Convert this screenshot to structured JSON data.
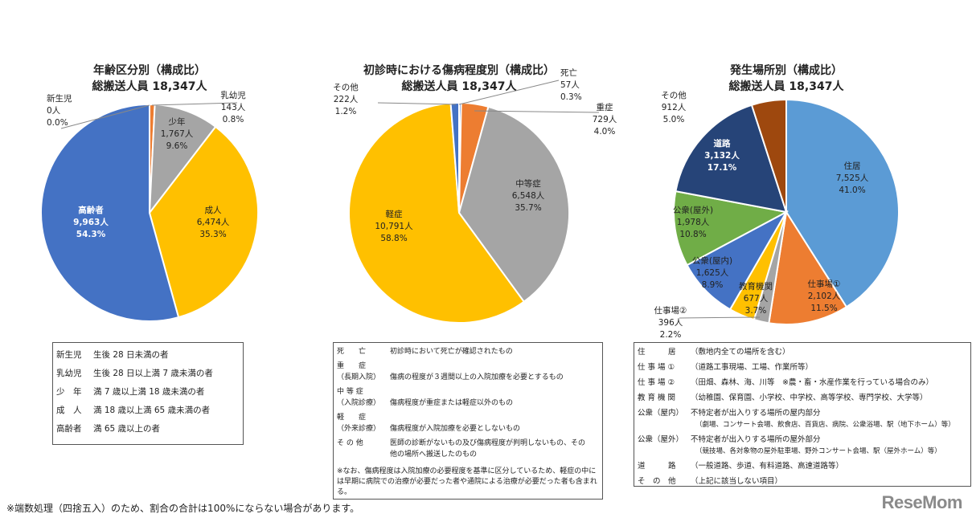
{
  "chart_data": [
    {
      "type": "pie",
      "title": "年齢区分別（構成比）",
      "subtitle": "総搬送人員 18,347人",
      "slices": [
        {
          "name": "新生児",
          "count": "0人",
          "pct": "0.0%",
          "value": 0,
          "color": "#ED7D31"
        },
        {
          "name": "乳幼児",
          "count": "143人",
          "pct": "0.8%",
          "value": 143,
          "color": "#ED7D31"
        },
        {
          "name": "少年",
          "count": "1,767人",
          "pct": "9.6%",
          "value": 1767,
          "color": "#A5A5A5"
        },
        {
          "name": "成人",
          "count": "6,474人",
          "pct": "35.3%",
          "value": 6474,
          "color": "#FFC000"
        },
        {
          "name": "高齢者",
          "count": "9,963人",
          "pct": "54.3%",
          "value": 9963,
          "color": "#4472C4"
        }
      ]
    },
    {
      "type": "pie",
      "title": "初診時における傷病程度別（構成比）",
      "subtitle": "総搬送人員 18,347人",
      "slices": [
        {
          "name": "死亡",
          "count": "57人",
          "pct": "0.3%",
          "value": 57,
          "color": "#4472C4"
        },
        {
          "name": "重症",
          "count": "729人",
          "pct": "4.0%",
          "value": 729,
          "color": "#ED7D31"
        },
        {
          "name": "中等症",
          "count": "6,548人",
          "pct": "35.7%",
          "value": 6548,
          "color": "#A5A5A5"
        },
        {
          "name": "軽症",
          "count": "10,791人",
          "pct": "58.8%",
          "value": 10791,
          "color": "#FFC000"
        },
        {
          "name": "その他",
          "count": "222人",
          "pct": "1.2%",
          "value": 222,
          "color": "#4472C4"
        }
      ]
    },
    {
      "type": "pie",
      "title": "発生場所別（構成比）",
      "subtitle": "総搬送人員 18,347人",
      "slices": [
        {
          "name": "住居",
          "count": "7,525人",
          "pct": "41.0%",
          "value": 7525,
          "color": "#5B9BD5"
        },
        {
          "name": "仕事場①",
          "count": "2,102人",
          "pct": "11.5%",
          "value": 2102,
          "color": "#ED7D31"
        },
        {
          "name": "仕事場②",
          "count": "396人",
          "pct": "2.2%",
          "value": 396,
          "color": "#A5A5A5"
        },
        {
          "name": "教育機関",
          "count": "677人",
          "pct": "3.7%",
          "value": 677,
          "color": "#FFC000"
        },
        {
          "name": "公衆(屋内)",
          "count": "1,625人",
          "pct": "8.9%",
          "value": 1625,
          "color": "#4472C4"
        },
        {
          "name": "公衆(屋外)",
          "count": "1,978人",
          "pct": "10.8%",
          "value": 1978,
          "color": "#70AD47"
        },
        {
          "name": "道路",
          "count": "3,132人",
          "pct": "17.1%",
          "value": 3132,
          "color": "#264478"
        },
        {
          "name": "その他",
          "count": "912人",
          "pct": "5.0%",
          "value": 912,
          "color": "#9E480E"
        }
      ]
    }
  ],
  "legend_age": [
    [
      "新生児",
      "生後 28 日未満の者"
    ],
    [
      "乳幼児",
      "生後 28 日以上満 7 歳未満の者"
    ],
    [
      "少　年",
      "満 7 歳以上満 18 歳未満の者"
    ],
    [
      "成　人",
      "満 18 歳以上満 65 歳未満の者"
    ],
    [
      "高齢者",
      "満 65 歳以上の者"
    ]
  ],
  "legend_severity": [
    [
      "死　　亡",
      "",
      "初診時において死亡が確認されたもの"
    ],
    [
      "重　　症",
      "（長期入院）",
      "傷病の程度が３週間以上の入院加療を必要とするもの"
    ],
    [
      "中 等 症",
      "（入院診療）",
      "傷病程度が重症または軽症以外のもの"
    ],
    [
      "軽　　症",
      "（外来診療）",
      "傷病程度が入院加療を必要としないもの"
    ],
    [
      "そ の 他",
      "",
      "医師の診断がないもの及び傷病程度が判明しないもの、その他の場所へ搬送したのもの"
    ]
  ],
  "legend_severity_note": "※なお、傷病程度は入院加療の必要程度を基準に区分しているため、軽症の中には早期に病院での治療が必要だった者や通院による治療が必要だった者も含まれる。",
  "legend_place": [
    [
      "住　　　居",
      "（敷地内全ての場所を含む）",
      ""
    ],
    [
      "仕 事 場 ①",
      "（道路工事現場、工場、作業所等）",
      ""
    ],
    [
      "仕 事 場 ②",
      "（田畑、森林、海、川等　※農・畜・水産作業を行っている場合のみ）",
      ""
    ],
    [
      "教 育 機 関",
      "（幼稚園、保育園、小学校、中学校、高等学校、専門学校、大学等）",
      ""
    ],
    [
      "公衆（屋内）",
      "不特定者が出入りする場所の屋内部分",
      "（劇場、コンサート会場、飲食店、百貨店、病院、公衆浴場、駅（地下ホーム）等）"
    ],
    [
      "公衆（屋外）",
      "不特定者が出入りする場所の屋外部分",
      "（競技場、各対象物の屋外駐車場、野外コンサート会場、駅（屋外ホーム）等）"
    ],
    [
      "道　　　路",
      "（一般道路、歩道、有料道路、高速道路等）",
      ""
    ],
    [
      "そ　の　他",
      "（上記に該当しない項目）",
      ""
    ]
  ],
  "footnote": "※端数処理（四捨五入）のため、割合の合計は100%にならない場合があります。",
  "logo": "ReseMom"
}
